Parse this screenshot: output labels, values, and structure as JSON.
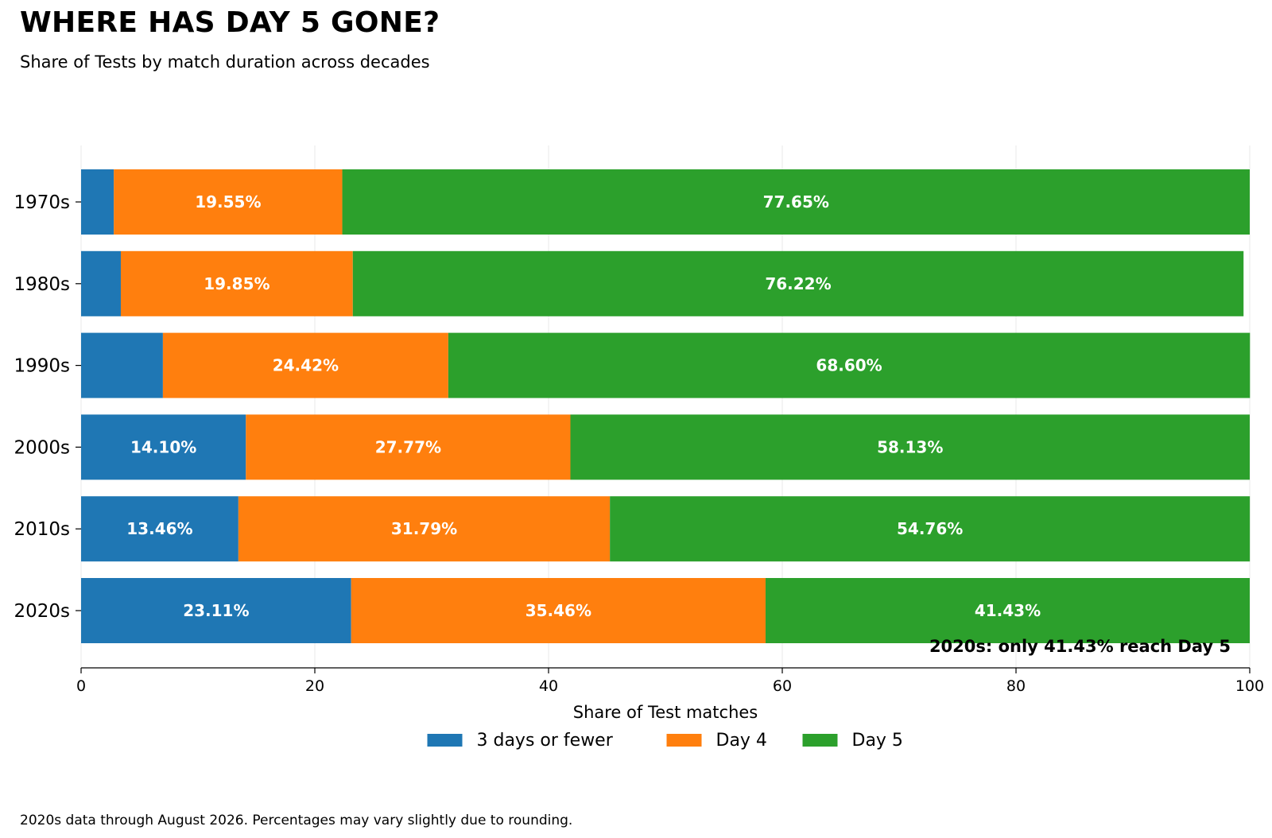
{
  "chart_data": {
    "type": "bar",
    "orientation": "horizontal",
    "stacked": true,
    "title": "WHERE HAS DAY 5 GONE?",
    "subtitle": "Share of Tests by match duration across decades",
    "xlabel": "Share of Test matches",
    "ylabel": "",
    "xlim": [
      0,
      100
    ],
    "xticks": [
      "0",
      "20",
      "40",
      "60",
      "80",
      "100"
    ],
    "grid": "vertical",
    "legend_position": "bottom",
    "categories": [
      "1970s",
      "1980s",
      "1990s",
      "2000s",
      "2010s",
      "2020s"
    ],
    "series": [
      {
        "name": "3 days or fewer",
        "color": "#1f77b4",
        "values": [
          2.8,
          3.4,
          7.0,
          14.1,
          13.46,
          23.11
        ],
        "labels": [
          "",
          "",
          "",
          "14.10%",
          "13.46%",
          "23.11%"
        ]
      },
      {
        "name": "Day 4",
        "color": "#ff7f0e",
        "values": [
          19.55,
          19.85,
          24.42,
          27.77,
          31.79,
          35.46
        ],
        "labels": [
          "19.55%",
          "19.85%",
          "24.42%",
          "27.77%",
          "31.79%",
          "35.46%"
        ]
      },
      {
        "name": "Day 5",
        "color": "#2ca02c",
        "values": [
          77.65,
          76.22,
          68.6,
          58.13,
          54.76,
          41.43
        ],
        "labels": [
          "77.65%",
          "76.22%",
          "68.60%",
          "58.13%",
          "54.76%",
          "41.43%"
        ]
      }
    ],
    "annotation": "2020s: only 41.43% reach Day 5"
  },
  "footnote": "2020s data through August 2026. Percentages may vary slightly due to rounding."
}
